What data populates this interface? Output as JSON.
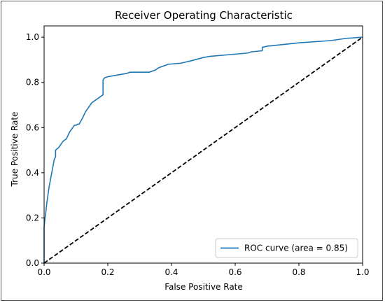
{
  "chart_data": {
    "type": "line",
    "title": "Receiver Operating Characteristic",
    "xlabel": "False Positive Rate",
    "ylabel": "True Positive Rate",
    "xlim": [
      0,
      1
    ],
    "ylim": [
      0,
      1.05
    ],
    "xticks": [
      "0.0",
      "0.2",
      "0.4",
      "0.6",
      "0.8",
      "1.0"
    ],
    "yticks": [
      "0.0",
      "0.2",
      "0.4",
      "0.6",
      "0.8",
      "1.0"
    ],
    "grid": false,
    "legend_position": "lower-right",
    "series": [
      {
        "name": "ROC curve (area = 0.85)",
        "color": "#1f77b4",
        "style": "solid",
        "x": [
          0.0,
          0.0,
          0.003,
          0.005,
          0.008,
          0.012,
          0.016,
          0.02,
          0.024,
          0.028,
          0.032,
          0.036,
          0.036,
          0.04,
          0.045,
          0.05,
          0.055,
          0.06,
          0.07,
          0.08,
          0.09,
          0.095,
          0.1,
          0.105,
          0.11,
          0.12,
          0.125,
          0.13,
          0.14,
          0.15,
          0.16,
          0.17,
          0.18,
          0.185,
          0.185,
          0.19,
          0.2,
          0.22,
          0.26,
          0.27,
          0.33,
          0.35,
          0.36,
          0.37,
          0.39,
          0.43,
          0.46,
          0.5,
          0.52,
          0.6,
          0.64,
          0.65,
          0.685,
          0.685,
          0.7,
          0.8,
          0.9,
          0.95,
          1.0
        ],
        "y": [
          0.0,
          0.16,
          0.2,
          0.22,
          0.26,
          0.3,
          0.34,
          0.37,
          0.4,
          0.43,
          0.46,
          0.47,
          0.5,
          0.505,
          0.51,
          0.52,
          0.53,
          0.54,
          0.55,
          0.58,
          0.6,
          0.61,
          0.61,
          0.615,
          0.615,
          0.64,
          0.655,
          0.67,
          0.69,
          0.71,
          0.72,
          0.73,
          0.74,
          0.745,
          0.81,
          0.82,
          0.825,
          0.83,
          0.84,
          0.845,
          0.845,
          0.855,
          0.865,
          0.87,
          0.88,
          0.885,
          0.895,
          0.91,
          0.915,
          0.925,
          0.93,
          0.935,
          0.94,
          0.955,
          0.96,
          0.975,
          0.985,
          0.995,
          1.0
        ]
      },
      {
        "color": "#000000",
        "style": "dashed",
        "x": [
          0,
          1
        ],
        "y": [
          0,
          1
        ]
      }
    ]
  }
}
